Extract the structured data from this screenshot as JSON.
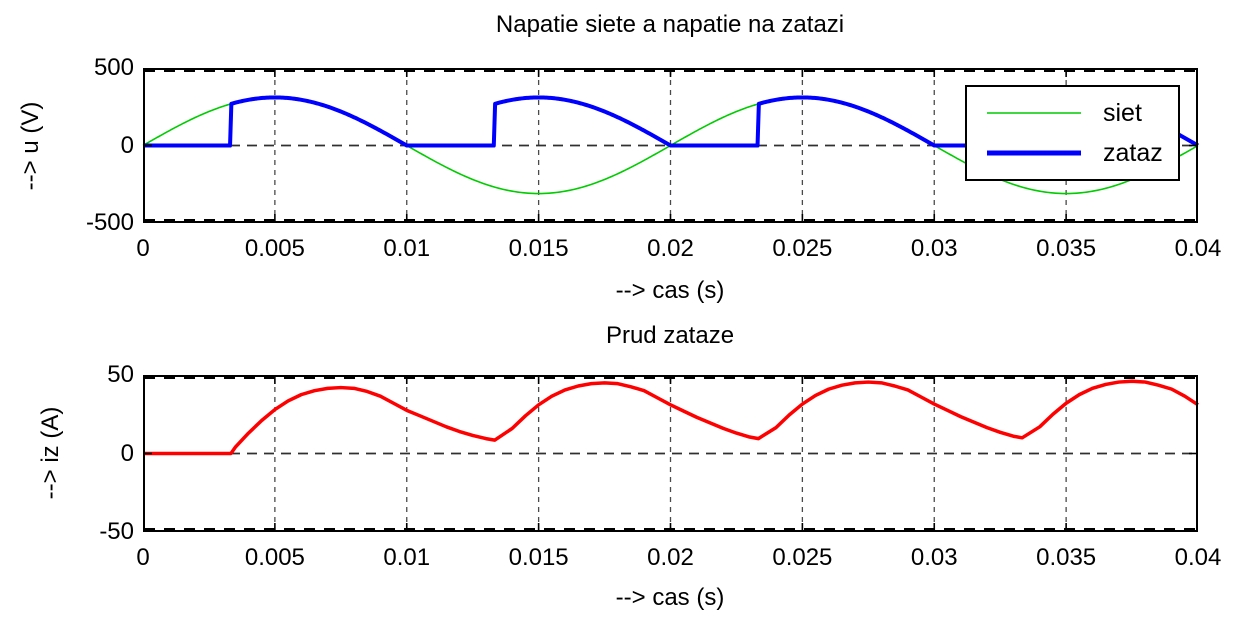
{
  "figure": {
    "background": "#FFFFFF",
    "grid_color": "#4A4A4A",
    "zero_line_color": "#303030",
    "axis_color": "#000000"
  },
  "chart_data": [
    {
      "type": "line",
      "title": "Napatie siete a napatie na zatazi",
      "xlabel": "--> cas (s)",
      "ylabel": "--> u (V)",
      "xlim": [
        0,
        0.04
      ],
      "ylim": [
        -500,
        500
      ],
      "xticks": {
        "values": [
          0,
          0.005,
          0.01,
          0.015,
          0.02,
          0.025,
          0.03,
          0.035,
          0.04
        ],
        "labels": [
          "0",
          "0.005",
          "0.01",
          "0.015",
          "0.02",
          "0.025",
          "0.03",
          "0.035",
          "0.04"
        ]
      },
      "yticks": {
        "values": [
          500,
          0,
          -500
        ],
        "labels": [
          "500",
          "0",
          "-500"
        ]
      },
      "grid": true,
      "legend": {
        "position": "northeast",
        "entries": [
          "siet",
          "zataz"
        ]
      },
      "series": [
        {
          "name": "siet",
          "color": "#00CC00",
          "width": 1.6,
          "waveform": {
            "kind": "sine",
            "amplitude_V": 310,
            "frequency_hz": 50,
            "sample_step_s": 0.0001
          }
        },
        {
          "name": "zataz",
          "color": "#0000FF",
          "width": 4,
          "waveform": {
            "kind": "phase_controlled_full_wave_rectified_sine",
            "amplitude_V": 310,
            "frequency_hz": 50,
            "firing_delay_s": 0.003333,
            "sample_step_s": 5e-05
          }
        }
      ]
    },
    {
      "type": "line",
      "title": "Prud zataze",
      "xlabel": "--> cas (s)",
      "ylabel": "--> iz (A)",
      "xlim": [
        0,
        0.04
      ],
      "ylim": [
        -50,
        50
      ],
      "xticks": {
        "values": [
          0,
          0.005,
          0.01,
          0.015,
          0.02,
          0.025,
          0.03,
          0.035,
          0.04
        ],
        "labels": [
          "0",
          "0.005",
          "0.01",
          "0.015",
          "0.02",
          "0.025",
          "0.03",
          "0.035",
          "0.04"
        ]
      },
      "yticks": {
        "values": [
          50,
          0,
          -50
        ],
        "labels": [
          "50",
          "0",
          "-50"
        ]
      },
      "grid": true,
      "series": [
        {
          "name": "prud zataze",
          "color": "#FF0000",
          "width": 3.5,
          "points_t_s_A": [
            [
              0,
              0
            ],
            [
              0.001,
              0
            ],
            [
              0.002,
              0
            ],
            [
              0.003,
              0
            ],
            [
              0.003333,
              0
            ],
            [
              0.0035,
              4
            ],
            [
              0.004,
              13
            ],
            [
              0.0045,
              21
            ],
            [
              0.005,
              28
            ],
            [
              0.0055,
              33.5
            ],
            [
              0.006,
              37.5
            ],
            [
              0.0065,
              40
            ],
            [
              0.007,
              41.5
            ],
            [
              0.0075,
              42
            ],
            [
              0.008,
              41.5
            ],
            [
              0.0085,
              39.5
            ],
            [
              0.009,
              36.5
            ],
            [
              0.0095,
              32
            ],
            [
              0.01,
              27.5
            ],
            [
              0.0105,
              24
            ],
            [
              0.011,
              20.5
            ],
            [
              0.0115,
              17
            ],
            [
              0.012,
              14
            ],
            [
              0.0125,
              11.5
            ],
            [
              0.013,
              9.5
            ],
            [
              0.013333,
              8.5
            ],
            [
              0.014,
              16
            ],
            [
              0.0145,
              24
            ],
            [
              0.015,
              31
            ],
            [
              0.0155,
              36.5
            ],
            [
              0.016,
              40.5
            ],
            [
              0.0165,
              43
            ],
            [
              0.017,
              44.5
            ],
            [
              0.0175,
              45
            ],
            [
              0.018,
              44.5
            ],
            [
              0.0185,
              42.5
            ],
            [
              0.019,
              40
            ],
            [
              0.0195,
              35.5
            ],
            [
              0.02,
              31
            ],
            [
              0.0205,
              27
            ],
            [
              0.021,
              23
            ],
            [
              0.0215,
              19.5
            ],
            [
              0.022,
              16
            ],
            [
              0.0225,
              13
            ],
            [
              0.023,
              10.5
            ],
            [
              0.023333,
              9.5
            ],
            [
              0.024,
              16.5
            ],
            [
              0.0245,
              24.5
            ],
            [
              0.025,
              31.5
            ],
            [
              0.0255,
              37
            ],
            [
              0.026,
              41
            ],
            [
              0.0265,
              43.5
            ],
            [
              0.027,
              45
            ],
            [
              0.0275,
              45.5
            ],
            [
              0.028,
              45
            ],
            [
              0.0285,
              43
            ],
            [
              0.029,
              40.5
            ],
            [
              0.0295,
              36
            ],
            [
              0.03,
              31.5
            ],
            [
              0.0305,
              27.5
            ],
            [
              0.031,
              23.5
            ],
            [
              0.0315,
              20
            ],
            [
              0.032,
              16.5
            ],
            [
              0.0325,
              13.5
            ],
            [
              0.033,
              11
            ],
            [
              0.033333,
              10
            ],
            [
              0.034,
              17
            ],
            [
              0.0345,
              25
            ],
            [
              0.035,
              32
            ],
            [
              0.0355,
              37.5
            ],
            [
              0.036,
              41.5
            ],
            [
              0.0365,
              44
            ],
            [
              0.037,
              45.5
            ],
            [
              0.0375,
              46
            ],
            [
              0.038,
              45.5
            ],
            [
              0.0385,
              43.5
            ],
            [
              0.039,
              41
            ],
            [
              0.0395,
              36.5
            ],
            [
              0.04,
              31
            ]
          ]
        }
      ]
    }
  ]
}
